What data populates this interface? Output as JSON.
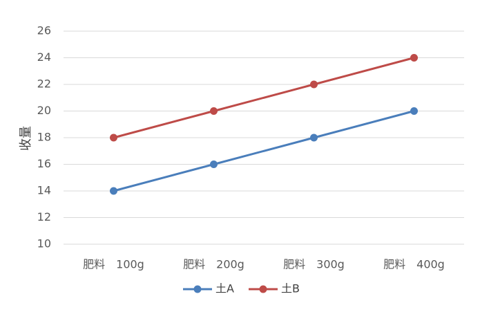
{
  "chart_data": {
    "type": "line",
    "title": "",
    "xlabel": "",
    "ylabel": "收量",
    "categories": [
      "肥料　100g",
      "肥料　200g",
      "肥料　300g",
      "肥料　400g"
    ],
    "ylim": [
      10,
      26
    ],
    "yticks": [
      10,
      12,
      14,
      16,
      18,
      20,
      22,
      24,
      26
    ],
    "grid": true,
    "legend": "bottom",
    "series": [
      {
        "name": "土A",
        "values": [
          14,
          16,
          18,
          20
        ],
        "color": "#4a7ebb"
      },
      {
        "name": "土B",
        "values": [
          18,
          20,
          22,
          24
        ],
        "color": "#be4b48"
      }
    ]
  }
}
